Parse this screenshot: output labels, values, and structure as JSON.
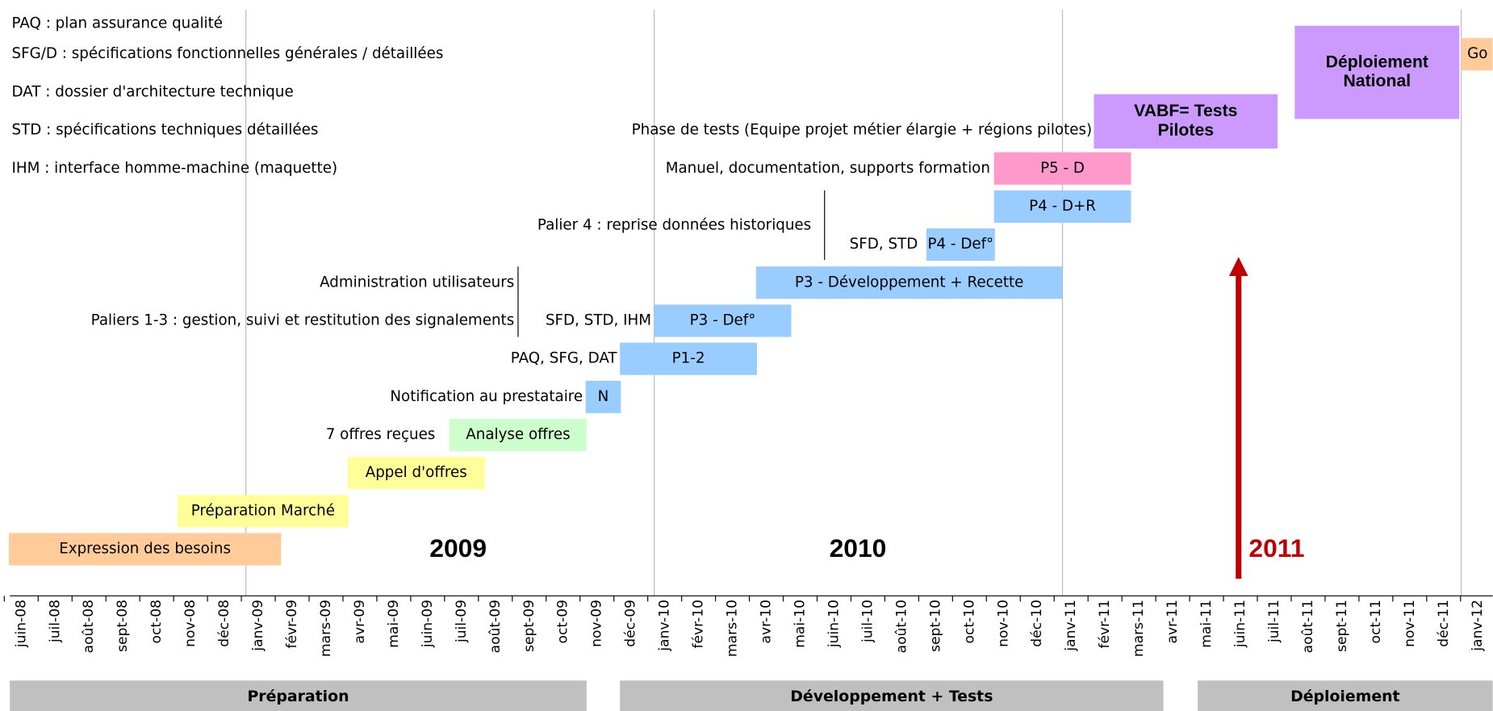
{
  "legend": [
    "PAQ : plan assurance qualité",
    "SFG/D : spécifications fonctionnelles générales / détaillées",
    "DAT : dossier d'architecture technique",
    "STD : spécifications techniques détaillées",
    "IHM : interface homme-machine (maquette)"
  ],
  "tasks": [
    {
      "lines": [
        "Expression des besoins"
      ]
    },
    {
      "lines": [
        "Préparation Marché"
      ]
    },
    {
      "lines": [
        "Appel d'offres"
      ]
    },
    {
      "lines": [
        "Analyse offres"
      ]
    },
    {
      "lines": [
        "N"
      ]
    },
    {
      "lines": [
        "P1-2"
      ]
    },
    {
      "lines": [
        "P3 - Def°"
      ]
    },
    {
      "lines": [
        "P3 - Développement + Recette"
      ]
    },
    {
      "lines": [
        "P4 - Def°"
      ]
    },
    {
      "lines": [
        "P4 - D+R"
      ]
    },
    {
      "lines": [
        "P5 - D"
      ]
    },
    {
      "lines": [
        "VABF= Tests",
        "Pilotes"
      ]
    },
    {
      "lines": [
        "Déploiement",
        "National"
      ]
    },
    {
      "lines": [
        "Go"
      ]
    }
  ],
  "notes": [
    "7 offres reçues",
    "Notification au prestataire",
    "PAQ, SFG, DAT",
    "SFD, STD, IHM",
    "Paliers 1-3 : gestion, suivi et restitution des signalements",
    "Administration utilisateurs",
    "Palier 4 : reprise données historiques",
    "SFD, STD",
    "Manuel, documentation, supports formation",
    "Phase de tests (Equipe projet métier élargie + régions pilotes)"
  ],
  "years": [
    "2009",
    "2010",
    "2011"
  ],
  "months": [
    "juin-08",
    "juil-08",
    "août-08",
    "sept-08",
    "oct-08",
    "nov-08",
    "déc-08",
    "janv-09",
    "févr-09",
    "mars-09",
    "avr-09",
    "mai-09",
    "juin-09",
    "juil-09",
    "août-09",
    "sept-09",
    "oct-09",
    "nov-09",
    "déc-09",
    "janv-10",
    "févr-10",
    "mars-10",
    "avr-10",
    "mai-10",
    "juin-10",
    "juil-10",
    "août-10",
    "sept-10",
    "oct-10",
    "nov-10",
    "déc-10",
    "janv-11",
    "févr-11",
    "mars-11",
    "avr-11",
    "mai-11",
    "juin-11",
    "juil-11",
    "août-11",
    "sept-11",
    "oct-11",
    "nov-11",
    "déc-11",
    "janv-12"
  ],
  "phases": [
    "Préparation",
    "Développement + Tests",
    "Déploiement"
  ]
}
